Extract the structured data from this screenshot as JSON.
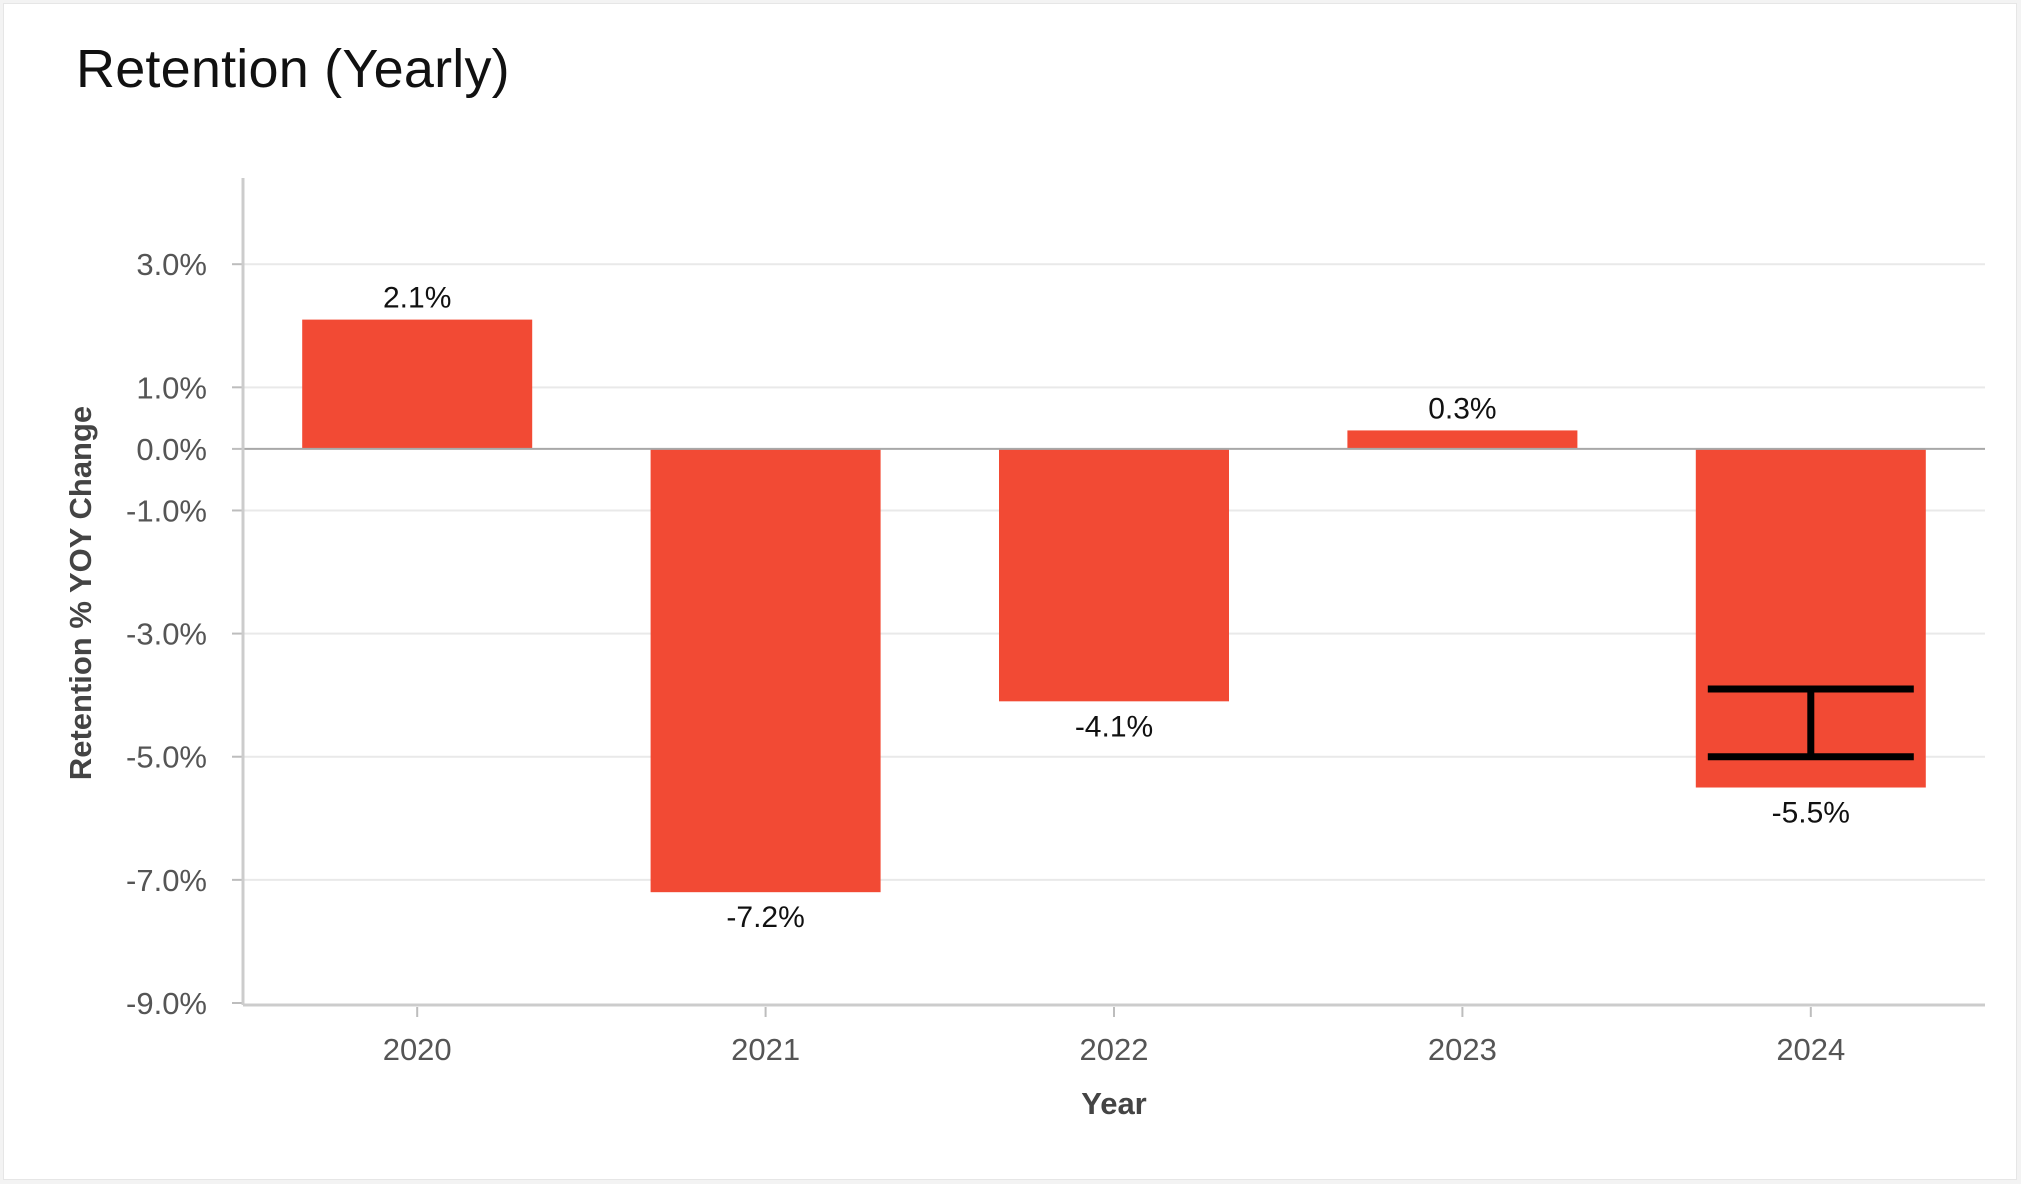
{
  "title": "Retention (Yearly)",
  "chart_data": {
    "type": "bar",
    "title": "Retention (Yearly)",
    "xlabel": "Year",
    "ylabel": "Retention % YOY Change",
    "categories": [
      "2020",
      "2021",
      "2022",
      "2023",
      "2024"
    ],
    "values": [
      2.1,
      -7.2,
      -4.1,
      0.3,
      -5.5
    ],
    "value_labels": [
      "2.1%",
      "-7.2%",
      "-4.1%",
      "0.3%",
      "-5.5%"
    ],
    "y_ticks": [
      3.0,
      1.0,
      0.0,
      -1.0,
      -3.0,
      -5.0,
      -7.0,
      -9.0
    ],
    "y_tick_labels": [
      "3.0%",
      "1.0%",
      "0.0%",
      "-1.0%",
      "-3.0%",
      "-5.0%",
      "-7.0%",
      "-9.0%"
    ],
    "ylim": [
      -9.0,
      4.4
    ],
    "grid": true,
    "bar_color": "#f24a34",
    "error_bar": {
      "category": "2024",
      "low": -5.0,
      "high": -3.9,
      "color": "#000000"
    }
  }
}
